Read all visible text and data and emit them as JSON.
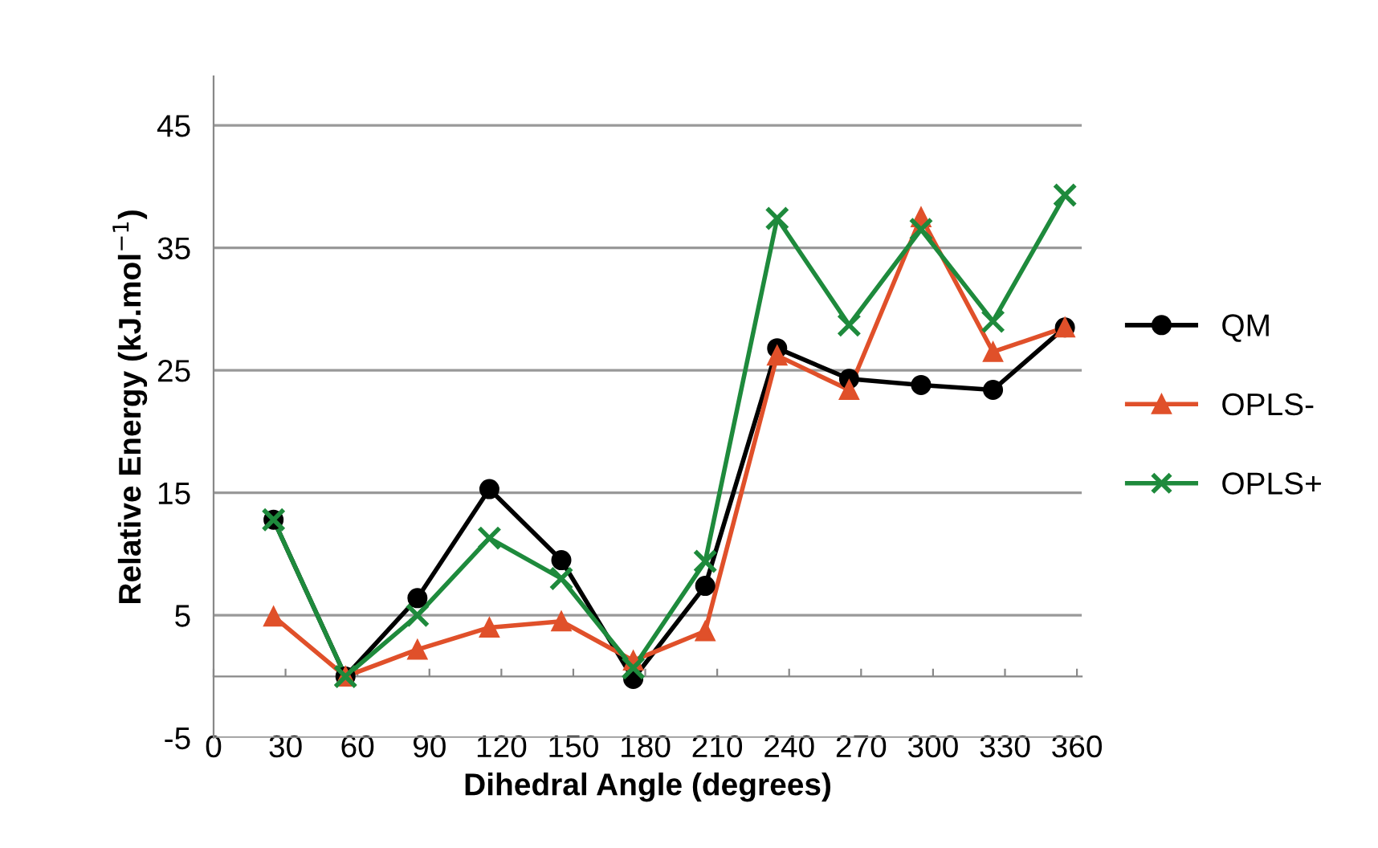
{
  "chart_data": {
    "type": "line",
    "xlabel": "Dihedral Angle (degrees)",
    "ylabel": "Relative Energy (kJ.mol$^{−1}$)",
    "x": [
      25,
      55,
      85,
      115,
      145,
      175,
      205,
      235,
      265,
      295,
      325,
      355
    ],
    "series": [
      {
        "name": "QM",
        "color": "#000000",
        "marker": "circle",
        "values": [
          12.8,
          0,
          6.4,
          15.3,
          9.5,
          -0.2,
          7.4,
          26.8,
          24.3,
          23.8,
          23.4,
          28.5
        ]
      },
      {
        "name": "OPLS-",
        "color": "#e0502a",
        "marker": "triangle",
        "values": [
          4.9,
          0,
          2.2,
          4.0,
          4.5,
          1.3,
          3.7,
          26.2,
          23.4,
          37.5,
          26.5,
          28.5
        ]
      },
      {
        "name": "OPLS+",
        "color": "#1e8a3c",
        "marker": "cross",
        "values": [
          12.8,
          0,
          5.0,
          11.3,
          8.0,
          0.7,
          9.4,
          37.4,
          28.7,
          36.5,
          29.0,
          39.3
        ]
      }
    ],
    "xlim": [
      0,
      362
    ],
    "xticks": [
      0,
      30,
      60,
      90,
      120,
      150,
      180,
      210,
      240,
      270,
      300,
      330,
      360
    ],
    "ylim": [
      -5,
      49
    ],
    "yticks": [
      -5,
      5,
      15,
      25,
      35,
      45
    ],
    "grid": "y",
    "legend": "right",
    "line_style": "solid"
  }
}
